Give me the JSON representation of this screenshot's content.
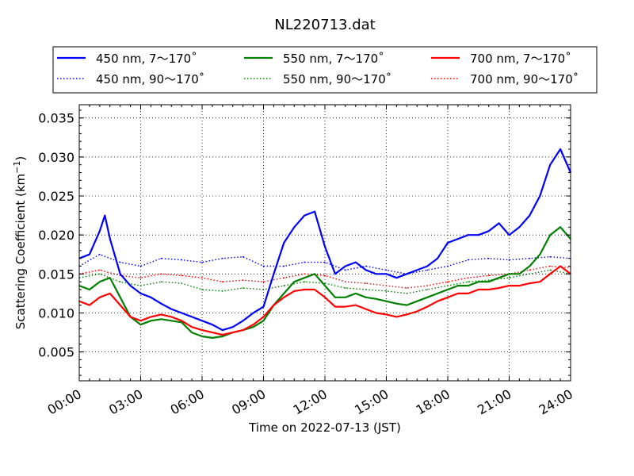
{
  "chart_data": {
    "type": "line",
    "title": "NL220713.dat",
    "xlabel": "Time on 2022-07-13 (JST)",
    "ylabel_prefix": "Scattering Coefficient (km",
    "ylabel_sup": "−1",
    "ylabel_suffix": ")",
    "x_ticks": [
      "00:00",
      "03:00",
      "06:00",
      "09:00",
      "12:00",
      "15:00",
      "18:00",
      "21:00",
      "24:00"
    ],
    "x_range_hours": [
      0,
      24
    ],
    "y_ticks": [
      "0.005",
      "0.010",
      "0.015",
      "0.020",
      "0.025",
      "0.030",
      "0.035"
    ],
    "y_tick_values": [
      0.005,
      0.01,
      0.015,
      0.02,
      0.025,
      0.03,
      0.035
    ],
    "ylim": [
      0.0013,
      0.0367
    ],
    "grid": true,
    "legend_position": "top",
    "series": [
      {
        "name": "450 nm, 7～170˚",
        "color": "#0000ff",
        "style": "solid",
        "x_hours": [
          0,
          0.5,
          1,
          1.25,
          1.5,
          2,
          2.5,
          3,
          3.5,
          4,
          4.5,
          5,
          5.5,
          6,
          6.5,
          7,
          7.5,
          8,
          8.5,
          9,
          9.5,
          10,
          10.5,
          11,
          11.5,
          12,
          12.5,
          13,
          13.5,
          14,
          14.5,
          15,
          15.5,
          16,
          16.5,
          17,
          17.5,
          18,
          18.5,
          19,
          19.5,
          20,
          20.5,
          21,
          21.5,
          22,
          22.5,
          23,
          23.5,
          24
        ],
        "values": [
          0.017,
          0.0175,
          0.0205,
          0.0225,
          0.0195,
          0.015,
          0.0135,
          0.0125,
          0.012,
          0.0112,
          0.0105,
          0.01,
          0.0095,
          0.009,
          0.0085,
          0.0078,
          0.0082,
          0.009,
          0.01,
          0.0108,
          0.015,
          0.019,
          0.021,
          0.0225,
          0.023,
          0.0185,
          0.015,
          0.016,
          0.0165,
          0.0155,
          0.015,
          0.015,
          0.0145,
          0.015,
          0.0155,
          0.016,
          0.017,
          0.019,
          0.0195,
          0.02,
          0.02,
          0.0205,
          0.0215,
          0.02,
          0.021,
          0.0225,
          0.025,
          0.029,
          0.031,
          0.028
        ]
      },
      {
        "name": "450 nm, 90～170˚",
        "color": "#0000ff",
        "style": "dotted",
        "x_hours": [
          0,
          1,
          2,
          3,
          4,
          5,
          6,
          7,
          8,
          9,
          10,
          11,
          12,
          13,
          14,
          15,
          16,
          17,
          18,
          19,
          20,
          21,
          22,
          23,
          24
        ],
        "values": [
          0.016,
          0.0175,
          0.0165,
          0.016,
          0.017,
          0.0168,
          0.0165,
          0.017,
          0.0172,
          0.016,
          0.016,
          0.0165,
          0.0165,
          0.0155,
          0.016,
          0.0155,
          0.015,
          0.0155,
          0.016,
          0.0168,
          0.017,
          0.0168,
          0.017,
          0.0172,
          0.017
        ]
      },
      {
        "name": "550 nm, 7～170˚",
        "color": "#008000",
        "style": "solid",
        "x_hours": [
          0,
          0.5,
          1,
          1.5,
          2,
          2.5,
          3,
          3.5,
          4,
          4.5,
          5,
          5.5,
          6,
          6.5,
          7,
          7.5,
          8,
          8.5,
          9,
          9.5,
          10,
          10.5,
          11,
          11.5,
          12,
          12.5,
          13,
          13.5,
          14,
          14.5,
          15,
          15.5,
          16,
          16.5,
          17,
          17.5,
          18,
          18.5,
          19,
          19.5,
          20,
          20.5,
          21,
          21.5,
          22,
          22.5,
          23,
          23.5,
          24
        ],
        "values": [
          0.0135,
          0.013,
          0.014,
          0.0145,
          0.012,
          0.0095,
          0.0085,
          0.009,
          0.0092,
          0.009,
          0.0088,
          0.0075,
          0.007,
          0.0068,
          0.007,
          0.0075,
          0.0078,
          0.0082,
          0.009,
          0.011,
          0.0125,
          0.014,
          0.0145,
          0.015,
          0.0135,
          0.012,
          0.012,
          0.0125,
          0.012,
          0.0118,
          0.0115,
          0.0112,
          0.011,
          0.0115,
          0.012,
          0.0125,
          0.013,
          0.0135,
          0.0135,
          0.014,
          0.014,
          0.0145,
          0.015,
          0.015,
          0.016,
          0.0175,
          0.02,
          0.021,
          0.0195
        ]
      },
      {
        "name": "550 nm, 90～170˚",
        "color": "#008000",
        "style": "dotted",
        "x_hours": [
          0,
          1,
          2,
          3,
          4,
          5,
          6,
          7,
          8,
          9,
          10,
          11,
          12,
          13,
          14,
          15,
          16,
          17,
          18,
          19,
          20,
          21,
          22,
          23,
          24
        ],
        "values": [
          0.0145,
          0.015,
          0.014,
          0.0135,
          0.014,
          0.0138,
          0.013,
          0.0128,
          0.0132,
          0.013,
          0.0135,
          0.014,
          0.0138,
          0.0132,
          0.013,
          0.0128,
          0.0125,
          0.013,
          0.0135,
          0.014,
          0.0142,
          0.0145,
          0.015,
          0.0155,
          0.015
        ]
      },
      {
        "name": "700 nm, 7～170˚",
        "color": "#ff0000",
        "style": "solid",
        "x_hours": [
          0,
          0.5,
          1,
          1.5,
          2,
          2.5,
          3,
          3.5,
          4,
          4.5,
          5,
          5.5,
          6,
          6.5,
          7,
          7.5,
          8,
          8.5,
          9,
          9.5,
          10,
          10.5,
          11,
          11.5,
          12,
          12.5,
          13,
          13.5,
          14,
          14.5,
          15,
          15.5,
          16,
          16.5,
          17,
          17.5,
          18,
          18.5,
          19,
          19.5,
          20,
          20.5,
          21,
          21.5,
          22,
          22.5,
          23,
          23.5,
          24
        ],
        "values": [
          0.0115,
          0.011,
          0.012,
          0.0125,
          0.011,
          0.0095,
          0.009,
          0.0095,
          0.0098,
          0.0095,
          0.009,
          0.0082,
          0.0078,
          0.0075,
          0.0072,
          0.0075,
          0.0078,
          0.0085,
          0.0095,
          0.011,
          0.012,
          0.0128,
          0.013,
          0.013,
          0.012,
          0.0108,
          0.0108,
          0.011,
          0.0105,
          0.01,
          0.0098,
          0.0095,
          0.0098,
          0.0102,
          0.0108,
          0.0115,
          0.012,
          0.0125,
          0.0125,
          0.013,
          0.013,
          0.0132,
          0.0135,
          0.0135,
          0.0138,
          0.014,
          0.015,
          0.016,
          0.015
        ]
      },
      {
        "name": "700 nm, 90～170˚",
        "color": "#ff0000",
        "style": "dotted",
        "x_hours": [
          0,
          1,
          2,
          3,
          4,
          5,
          6,
          7,
          8,
          9,
          10,
          11,
          12,
          13,
          14,
          15,
          16,
          17,
          18,
          19,
          20,
          21,
          22,
          23,
          24
        ],
        "values": [
          0.015,
          0.0155,
          0.0148,
          0.0145,
          0.015,
          0.0148,
          0.0145,
          0.014,
          0.0142,
          0.014,
          0.0145,
          0.015,
          0.0148,
          0.014,
          0.0138,
          0.0135,
          0.0132,
          0.0135,
          0.014,
          0.0145,
          0.0148,
          0.015,
          0.0155,
          0.016,
          0.0158
        ]
      }
    ]
  }
}
